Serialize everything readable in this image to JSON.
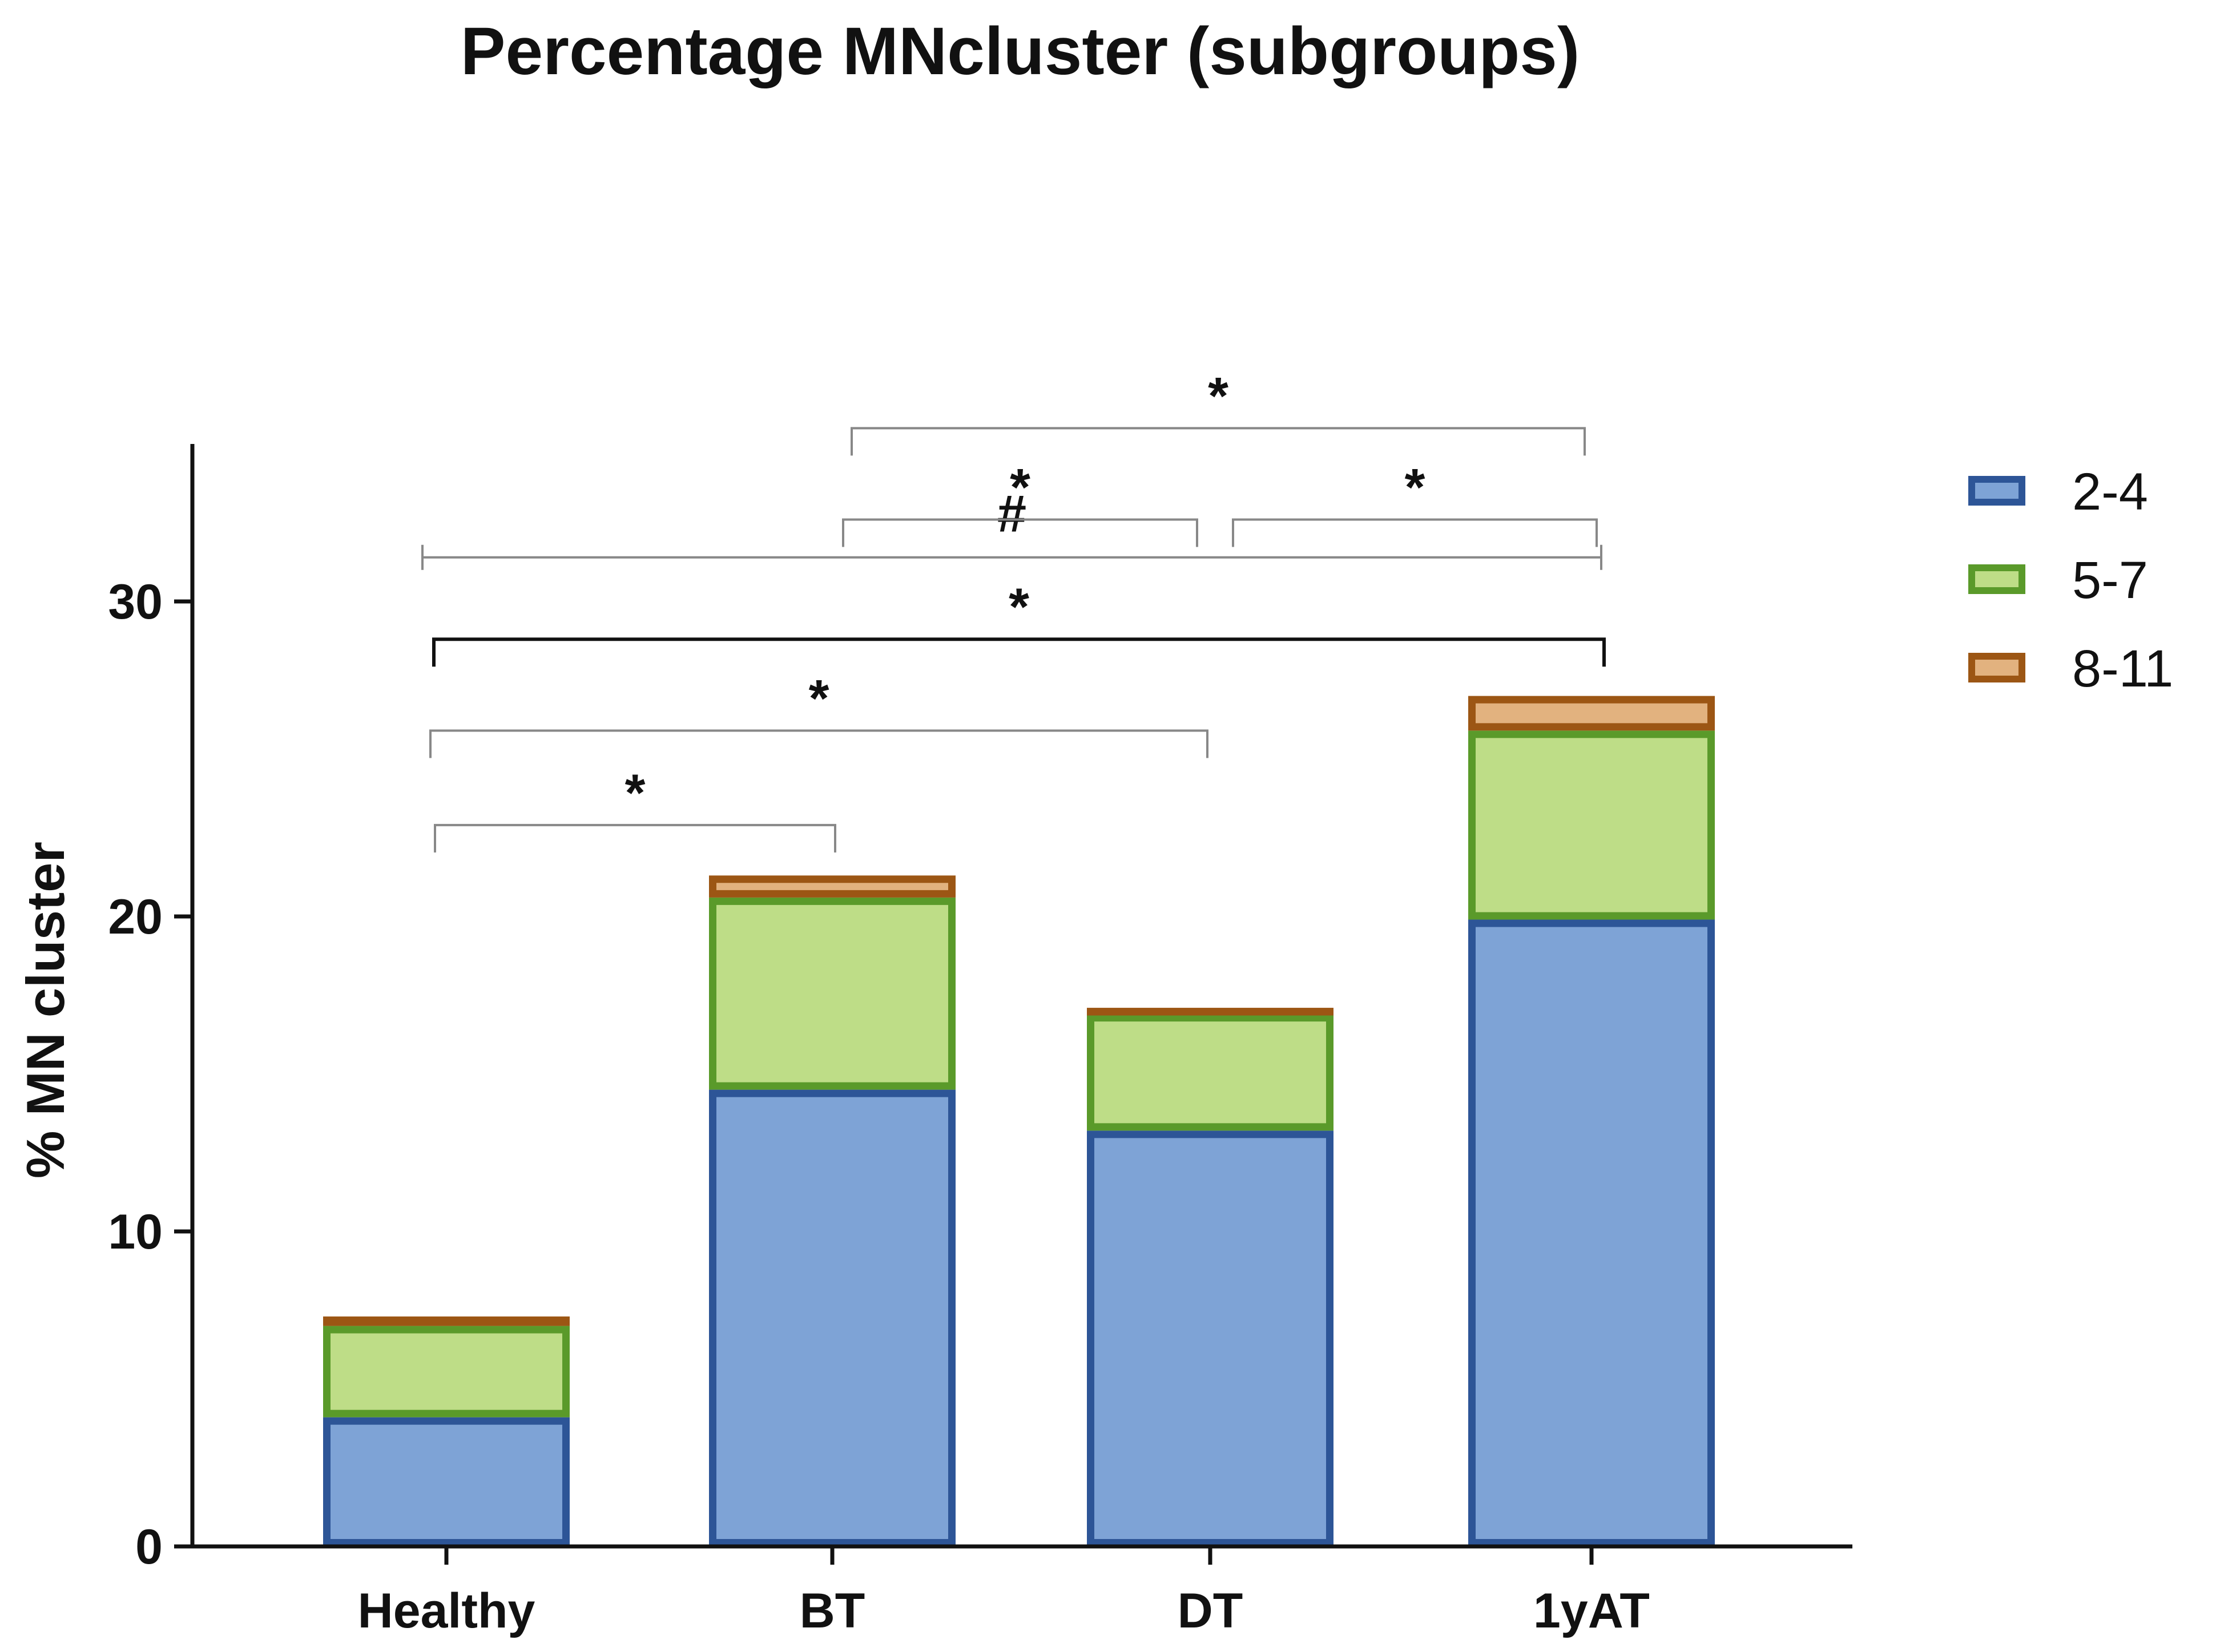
{
  "chart_data": {
    "type": "bar",
    "stacked": true,
    "title": "Percentage  MNcluster (subgroups)",
    "ylabel": "% MN cluster",
    "xlabel": "",
    "ylim": [
      0,
      35
    ],
    "yticks": [
      0,
      10,
      20,
      30
    ],
    "categories": [
      "Healthy",
      "BT",
      "DT",
      "1yAT"
    ],
    "series": [
      {
        "name": "2-4",
        "values": [
          4.1,
          14.5,
          13.2,
          19.9
        ],
        "fill": "#7EA3D6",
        "stroke": "#2D5597"
      },
      {
        "name": "5-7",
        "values": [
          2.9,
          6.1,
          3.7,
          6.0
        ],
        "fill": "#BEDD87",
        "stroke": "#5A9A2A"
      },
      {
        "name": "8-11",
        "values": [
          0.3,
          0.7,
          0.2,
          1.1
        ],
        "fill": "#E2B27F",
        "stroke": "#9C5614"
      }
    ],
    "legend_position": "top-right",
    "grid": false,
    "significance": [
      {
        "from": "Healthy",
        "to": "BT",
        "label": "*",
        "level": 22.9,
        "color": "#888888"
      },
      {
        "from": "Healthy",
        "to": "DT",
        "label": "*",
        "level": 25.9,
        "color": "#888888"
      },
      {
        "from": "Healthy",
        "to": "1yAT",
        "label": "*",
        "level": 28.8,
        "color": "#111111"
      },
      {
        "from": "Healthy",
        "to": "1yAT",
        "label": "#",
        "level": 31.4,
        "color": "#888888"
      },
      {
        "from": "BT",
        "to": "DT",
        "label": "*",
        "level": 32.6,
        "color": "#888888"
      },
      {
        "from": "DT",
        "to": "1yAT",
        "label": "*",
        "level": 32.6,
        "color": "#888888"
      },
      {
        "from": "BT",
        "to": "1yAT",
        "label": "*",
        "level": 35.5,
        "color": "#888888"
      }
    ]
  }
}
